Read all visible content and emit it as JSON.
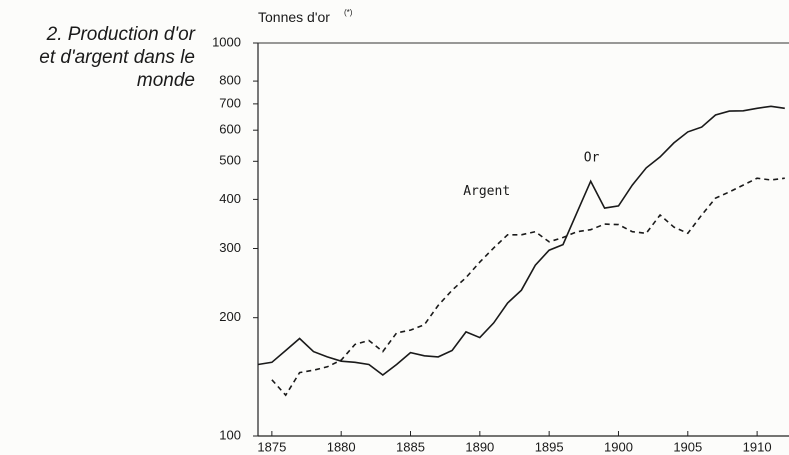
{
  "chart_data": {
    "type": "line",
    "title": [
      "2. Production d'or",
      "et d'argent dans le",
      "monde"
    ],
    "y_label": "Tonnes d'or",
    "y_label_note": "(*)",
    "log_scale": true,
    "x": [
      1874,
      1875,
      1876,
      1877,
      1878,
      1879,
      1880,
      1881,
      1882,
      1883,
      1884,
      1885,
      1886,
      1887,
      1888,
      1889,
      1890,
      1891,
      1892,
      1893,
      1894,
      1895,
      1896,
      1897,
      1898,
      1899,
      1900,
      1901,
      1902,
      1903,
      1904,
      1905,
      1906,
      1907,
      1908,
      1909,
      1910,
      1911,
      1912
    ],
    "xlim": [
      1874,
      1912.3
    ],
    "xticks": [
      1875,
      1880,
      1885,
      1890,
      1895,
      1900,
      1905,
      1910
    ],
    "ylim": [
      100,
      1000
    ],
    "yticks": [
      100,
      200,
      300,
      400,
      500,
      600,
      700,
      800,
      1000
    ],
    "series": [
      {
        "name": "Or",
        "color": "#1a1a1a",
        "dash": false,
        "values": [
          152,
          154,
          165,
          177,
          164,
          159,
          155,
          154,
          152,
          143,
          152,
          163,
          160,
          159,
          165,
          184,
          178,
          194,
          218,
          235,
          272,
          297,
          307,
          370,
          445,
          380,
          385,
          435,
          481,
          513,
          557,
          594,
          611,
          656,
          671,
          672,
          682,
          690,
          682
        ]
      },
      {
        "name": "Argent",
        "color": "#1a1a1a",
        "dash": true,
        "values": [
          null,
          139,
          127,
          145,
          147,
          150,
          156,
          171,
          175,
          164,
          183,
          186,
          192,
          215,
          235,
          253,
          277,
          301,
          325,
          325,
          331,
          312,
          320,
          331,
          335,
          346,
          345,
          331,
          328,
          365,
          340,
          328,
          365,
          403,
          418,
          435,
          453,
          448,
          453
        ]
      }
    ],
    "annotations": [
      {
        "text": "Or",
        "x": 1897.5,
        "y": 500
      },
      {
        "text": "Argent",
        "x": 1888.8,
        "y": 410
      }
    ]
  }
}
